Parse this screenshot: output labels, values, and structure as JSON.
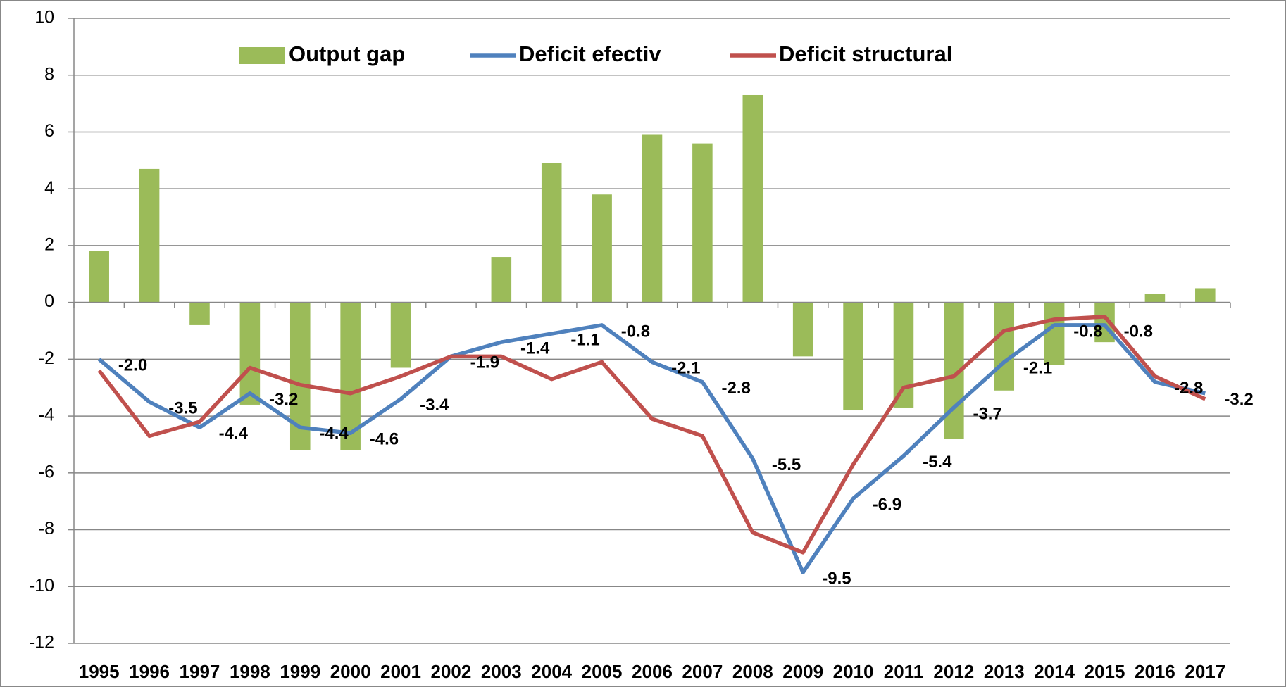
{
  "chart_data": {
    "type": "bar",
    "categories": [
      "1995",
      "1996",
      "1997",
      "1998",
      "1999",
      "2000",
      "2001",
      "2002",
      "2003",
      "2004",
      "2005",
      "2006",
      "2007",
      "2008",
      "2009",
      "2010",
      "2011",
      "2012",
      "2013",
      "2014",
      "2015",
      "2016",
      "2017"
    ],
    "series": [
      {
        "name": "Output gap",
        "kind": "bar",
        "color": "#9bbb59",
        "values": [
          1.8,
          4.7,
          -0.8,
          -3.6,
          -5.2,
          -5.2,
          -2.3,
          0,
          1.6,
          4.9,
          3.8,
          5.9,
          5.6,
          7.3,
          -1.9,
          -3.8,
          -3.7,
          -4.8,
          -3.1,
          -2.2,
          -1.4,
          0.3,
          0.5
        ]
      },
      {
        "name": "Deficit efectiv",
        "kind": "line",
        "color": "#4f81bd",
        "values": [
          -2.0,
          -3.5,
          -4.4,
          -3.2,
          -4.4,
          -4.6,
          -3.4,
          -1.9,
          -1.4,
          -1.1,
          -0.8,
          -2.1,
          -2.8,
          -5.5,
          -9.5,
          -6.9,
          -5.4,
          -3.7,
          -2.1,
          -0.8,
          -0.8,
          -2.8,
          -3.2
        ],
        "value_labels": [
          "-2.0",
          "-3.5",
          "-4.4",
          "-3.2",
          "-4.4",
          "-4.6",
          "-3.4",
          "-1.9",
          "-1.4",
          "-1.1",
          "-0.8",
          "-2.1",
          "-2.8",
          "-5.5",
          "-9.5",
          "-6.9",
          "-5.4",
          "-3.7",
          "-2.1",
          "-0.8",
          "-0.8",
          "-2.8",
          "-3.2"
        ]
      },
      {
        "name": "Deficit structural",
        "kind": "line",
        "color": "#c0504d",
        "values": [
          -2.4,
          -4.7,
          -4.2,
          -2.3,
          -2.9,
          -3.2,
          -2.6,
          -1.9,
          -1.9,
          -2.7,
          -2.1,
          -4.1,
          -4.7,
          -8.1,
          -8.8,
          -5.7,
          -3.0,
          -2.6,
          -1.0,
          -0.6,
          -0.5,
          -2.6,
          -3.4
        ]
      }
    ],
    "ylim": [
      -12,
      10
    ],
    "yticks": [
      -12,
      -10,
      -8,
      -6,
      -4,
      -2,
      0,
      2,
      4,
      6,
      8,
      10
    ],
    "grid": true,
    "legend": "top"
  }
}
